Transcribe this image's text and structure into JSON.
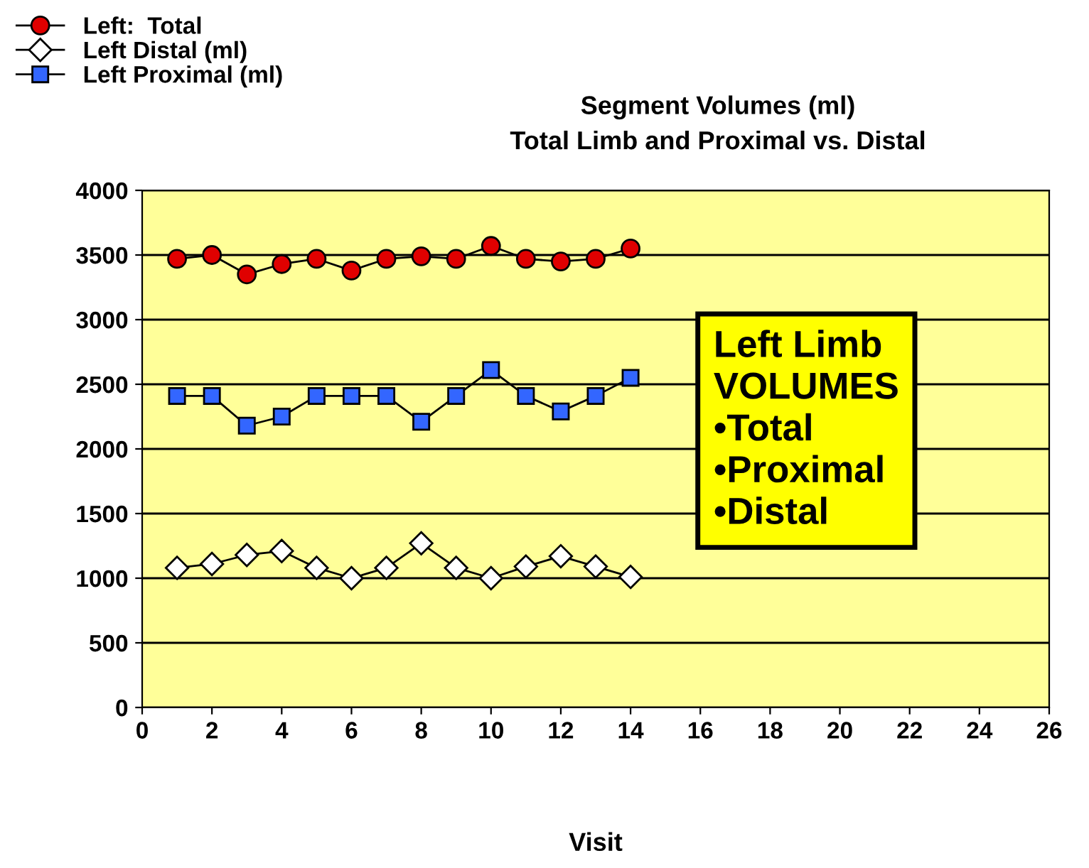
{
  "chart_data": {
    "type": "line",
    "title": "Segment Volumes (ml)\nTotal Limb and Proximal vs. Distal",
    "xlabel": "Visit",
    "x": [
      1,
      2,
      3,
      4,
      5,
      6,
      7,
      8,
      9,
      10,
      11,
      12,
      13,
      14
    ],
    "series": [
      {
        "name": "Left:  Total",
        "color": "#e00000",
        "marker": "circle",
        "values": [
          3470,
          3500,
          3350,
          3430,
          3470,
          3380,
          3470,
          3490,
          3470,
          3570,
          3470,
          3450,
          3470,
          3550
        ]
      },
      {
        "name": "Left Distal (ml)",
        "color": "#ffffff",
        "marker": "diamond",
        "values": [
          1080,
          1110,
          1180,
          1210,
          1080,
          1000,
          1080,
          1270,
          1080,
          1000,
          1090,
          1170,
          1090,
          1010
        ]
      },
      {
        "name": "Left Proximal (ml)",
        "color": "#3366ff",
        "marker": "square",
        "values": [
          2410,
          2410,
          2180,
          2250,
          2410,
          2410,
          2410,
          2210,
          2410,
          2610,
          2410,
          2290,
          2410,
          2550
        ]
      }
    ],
    "xlim": [
      0,
      26
    ],
    "xticks": [
      0,
      2,
      4,
      6,
      8,
      10,
      12,
      14,
      16,
      18,
      20,
      22,
      24,
      26
    ],
    "ylim": [
      0,
      4000
    ],
    "yticks": [
      0,
      500,
      1000,
      1500,
      2000,
      2500,
      3000,
      3500,
      4000
    ],
    "grid": "y",
    "legend": "top left",
    "line_style": "solid",
    "annotations": [
      "Left Limb\nVOLUMES\n•Total\n•Proximal\n•Distal"
    ]
  }
}
